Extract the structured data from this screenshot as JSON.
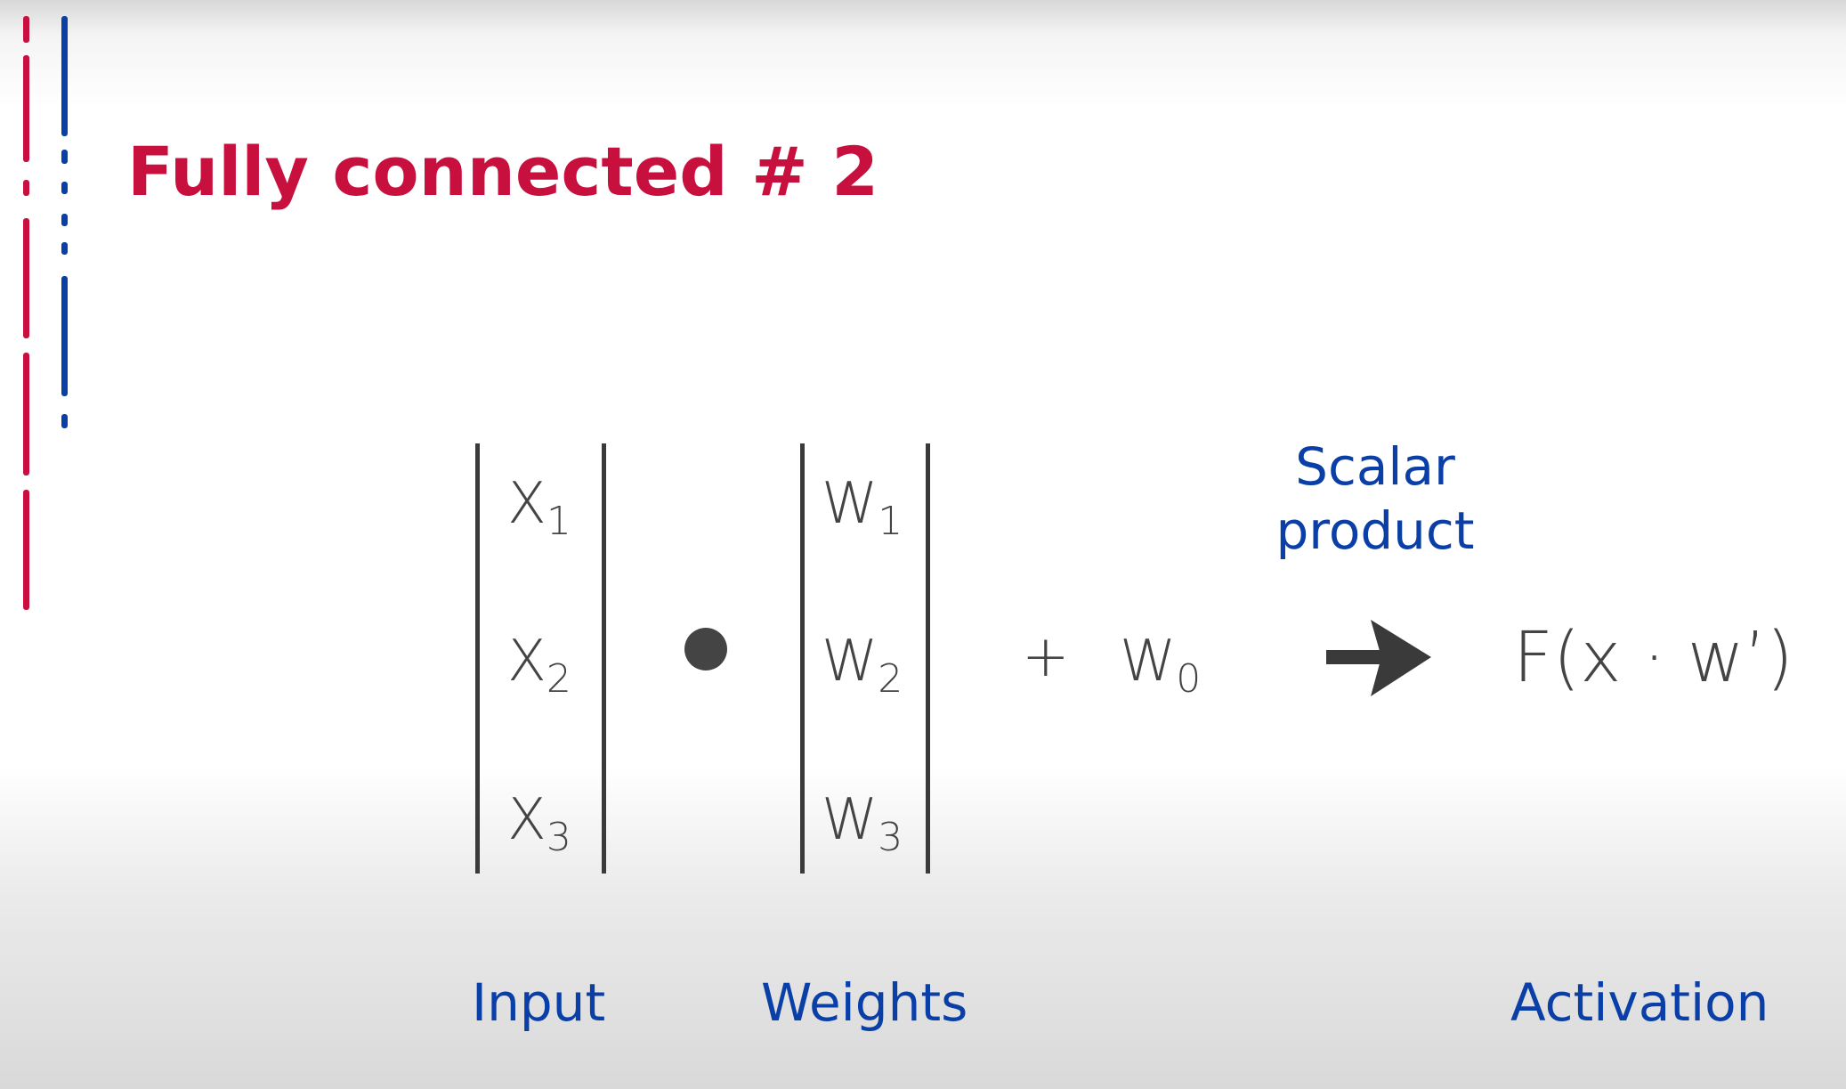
{
  "title": "Fully connected # 2",
  "input_vector": [
    {
      "base": "X",
      "sub": "1"
    },
    {
      "base": "X",
      "sub": "2"
    },
    {
      "base": "X",
      "sub": "3"
    }
  ],
  "weights_vector": [
    {
      "base": "W",
      "sub": "1"
    },
    {
      "base": "W",
      "sub": "2"
    },
    {
      "base": "W",
      "sub": "3"
    }
  ],
  "bias": {
    "plus": "+",
    "base": "W",
    "sub": "0"
  },
  "scalar_product": {
    "line1": "Scalar",
    "line2": "product"
  },
  "activation_formula": "F(x · w’)",
  "labels": {
    "input": "Input",
    "weights": "Weights",
    "activation": "Activation"
  },
  "colors": {
    "title": "#c8103e",
    "labels": "#0a3fa8",
    "symbols": "#444444",
    "decor_red": "#c8103e",
    "decor_blue": "#0a3fa8"
  },
  "icons": {
    "dot_operator": "dot-product-icon",
    "arrow": "right-arrow-icon"
  }
}
